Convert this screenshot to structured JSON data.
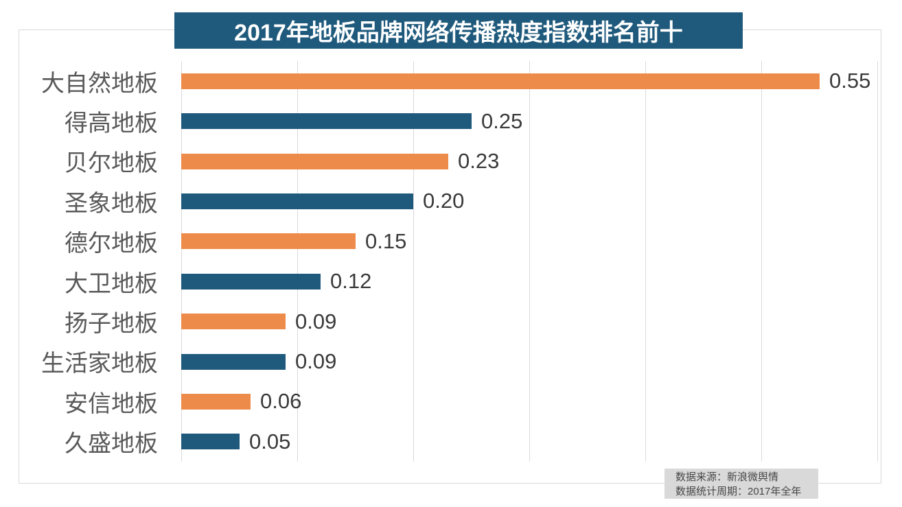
{
  "chart_data": {
    "type": "bar",
    "orientation": "horizontal",
    "title": "2017年地板品牌网络传播热度指数排名前十",
    "categories": [
      "大自然地板",
      "得高地板",
      "贝尔地板",
      "圣象地板",
      "德尔地板",
      "大卫地板",
      "扬子地板",
      "生活家地板",
      "安信地板",
      "久盛地板"
    ],
    "values": [
      0.55,
      0.25,
      0.23,
      0.2,
      0.15,
      0.12,
      0.09,
      0.09,
      0.06,
      0.05
    ],
    "value_labels": [
      "0.55",
      "0.25",
      "0.23",
      "0.20",
      "0.15",
      "0.12",
      "0.09",
      "0.09",
      "0.06",
      "0.05"
    ],
    "xlabel": "",
    "ylabel": "",
    "xlim": [
      0,
      0.6
    ],
    "grid_interval": 0.1,
    "grid": true,
    "legend": false,
    "bar_colors_alternating": [
      "#ed8c4a",
      "#1f5a7d"
    ]
  },
  "footer": {
    "source": "数据来源：新浪微舆情",
    "period": "数据统计周期：2017年全年"
  },
  "colors": {
    "background": "#ffffff",
    "title_bg": "#1f5a7d",
    "title_text": "#ffffff",
    "orange_bar": "#ed8c4a",
    "blue_bar": "#1f5a7d",
    "gridline": "#d9d9d9",
    "category_label": "#595959",
    "value_label": "#3a3a3a",
    "footer_bg": "#d9d9d9",
    "footer_text": "#474747"
  }
}
